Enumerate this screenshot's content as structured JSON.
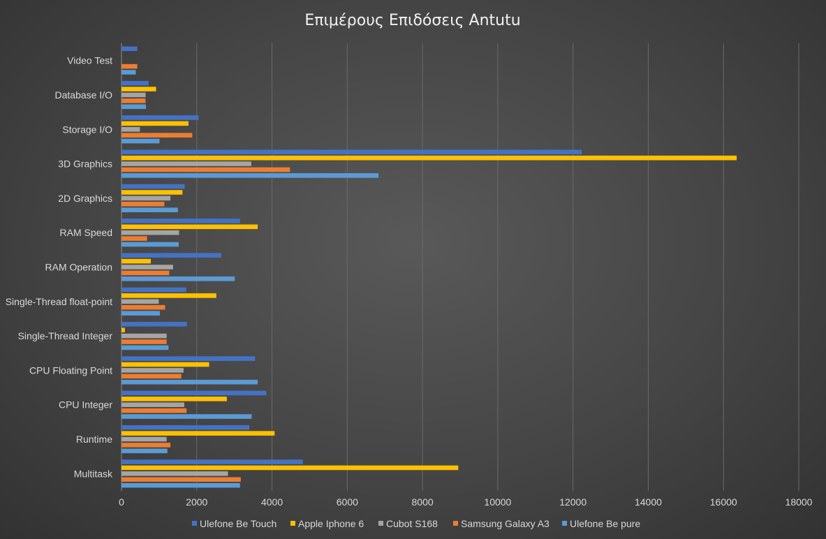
{
  "chart_data": {
    "type": "bar",
    "orientation": "horizontal",
    "title": "Επιμέρους Επιδόσεις Antutu",
    "xlabel": "",
    "ylabel": "",
    "xlim": [
      0,
      18000
    ],
    "ticks": [
      0,
      2000,
      4000,
      6000,
      8000,
      10000,
      12000,
      14000,
      16000,
      18000
    ],
    "grid": true,
    "legend_position": "bottom",
    "categories": [
      "Video Test",
      "Database I/O",
      "Storage I/O",
      "3D Graphics",
      "2D Graphics",
      "RAM Speed",
      "RAM Operation",
      "Single-Thread float-point",
      "Single-Thread Integer",
      "CPU Floating Point",
      "CPU Integer",
      "Runtime",
      "Multitask"
    ],
    "series": [
      {
        "name": "Ulefone Be Touch",
        "color": "#4472c4",
        "values": [
          420,
          720,
          2050,
          12230,
          1680,
          3150,
          2650,
          1720,
          1740,
          3550,
          3850,
          3400,
          4820
        ]
      },
      {
        "name": "Apple Iphone 6",
        "color": "#ffc000",
        "values": [
          0,
          920,
          1780,
          16350,
          1620,
          3620,
          780,
          2520,
          90,
          2330,
          2800,
          4070,
          8950
        ]
      },
      {
        "name": "Cubot S168",
        "color": "#a5a5a5",
        "values": [
          0,
          640,
          490,
          3450,
          1300,
          1530,
          1370,
          990,
          1200,
          1650,
          1670,
          1200,
          2830
        ]
      },
      {
        "name": "Samsung Galaxy A3",
        "color": "#ed7d31",
        "values": [
          420,
          640,
          1880,
          4480,
          1140,
          680,
          1270,
          1160,
          1200,
          1590,
          1730,
          1300,
          3170
        ]
      },
      {
        "name": "Ulefone Be pure",
        "color": "#5b9bd5",
        "values": [
          380,
          650,
          1010,
          6830,
          1500,
          1520,
          3010,
          1020,
          1250,
          3620,
          3460,
          1220,
          3150
        ]
      }
    ]
  }
}
